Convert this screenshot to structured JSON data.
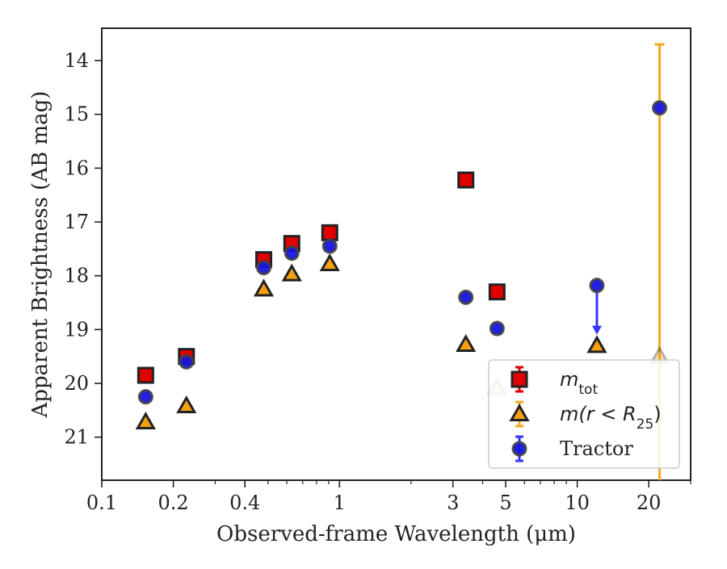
{
  "chart_data": {
    "type": "scatter",
    "xlabel": "Observed-frame Wavelength (μm)",
    "ylabel": "Apparent Brightness (AB mag)",
    "x_scale": "log",
    "y_inverted": true,
    "xlim": [
      0.1,
      30
    ],
    "ylim": [
      21.8,
      13.4
    ],
    "x_ticks": [
      {
        "value": 0.1,
        "label": "0.1"
      },
      {
        "value": 0.2,
        "label": "0.2"
      },
      {
        "value": 0.4,
        "label": "0.4"
      },
      {
        "value": 1,
        "label": "1"
      },
      {
        "value": 3,
        "label": "3"
      },
      {
        "value": 5,
        "label": "5"
      },
      {
        "value": 10,
        "label": "10"
      },
      {
        "value": 20,
        "label": "20"
      }
    ],
    "y_ticks": [
      {
        "value": 14,
        "label": "14"
      },
      {
        "value": 15,
        "label": "15"
      },
      {
        "value": 16,
        "label": "16"
      },
      {
        "value": 17,
        "label": "17"
      },
      {
        "value": 18,
        "label": "18"
      },
      {
        "value": 19,
        "label": "19"
      },
      {
        "value": 20,
        "label": "20"
      },
      {
        "value": 21,
        "label": "21"
      }
    ],
    "grid": false,
    "legend_position": "bottom-right",
    "series": [
      {
        "name": "m_tot",
        "legend_label": "m",
        "legend_subscript": "tot",
        "marker": "square",
        "color": "#e00000",
        "edge_color": "#222222",
        "errorbar_color": "#e00000",
        "points": [
          {
            "x": 0.153,
            "y": 19.85
          },
          {
            "x": 0.227,
            "y": 19.5
          },
          {
            "x": 0.48,
            "y": 17.7
          },
          {
            "x": 0.63,
            "y": 17.4
          },
          {
            "x": 0.91,
            "y": 17.2
          },
          {
            "x": 3.4,
            "y": 16.22
          },
          {
            "x": 4.6,
            "y": 18.3
          }
        ]
      },
      {
        "name": "m(r < R_25)",
        "legend_label": "m(r < R",
        "legend_subscript": "25",
        "legend_suffix": ")",
        "marker": "triangle",
        "color": "#f5a00f",
        "edge_color": "#222222",
        "errorbar_color": "#f5a623",
        "points": [
          {
            "x": 0.153,
            "y": 20.72
          },
          {
            "x": 0.227,
            "y": 20.42
          },
          {
            "x": 0.48,
            "y": 18.25
          },
          {
            "x": 0.63,
            "y": 17.97
          },
          {
            "x": 0.91,
            "y": 17.78
          },
          {
            "x": 3.4,
            "y": 19.28
          },
          {
            "x": 4.6,
            "y": 20.08
          },
          {
            "x": 12.1,
            "y": 19.3
          },
          {
            "x": 22.2,
            "y": 19.5,
            "yerr_low": 13.7,
            "yerr_high": 21.8
          }
        ]
      },
      {
        "name": "Tractor",
        "legend_label": "Tractor",
        "marker": "circle",
        "color": "#1515dd",
        "edge_color": "#444444",
        "errorbar_color": "#3333ff",
        "points": [
          {
            "x": 0.153,
            "y": 20.25
          },
          {
            "x": 0.227,
            "y": 19.6
          },
          {
            "x": 0.48,
            "y": 17.85
          },
          {
            "x": 0.63,
            "y": 17.58
          },
          {
            "x": 0.91,
            "y": 17.45
          },
          {
            "x": 3.4,
            "y": 18.4
          },
          {
            "x": 4.6,
            "y": 18.98
          },
          {
            "x": 12.1,
            "y": 18.18,
            "upper_limit_to": 19.05
          },
          {
            "x": 22.2,
            "y": 14.88
          }
        ]
      }
    ]
  }
}
